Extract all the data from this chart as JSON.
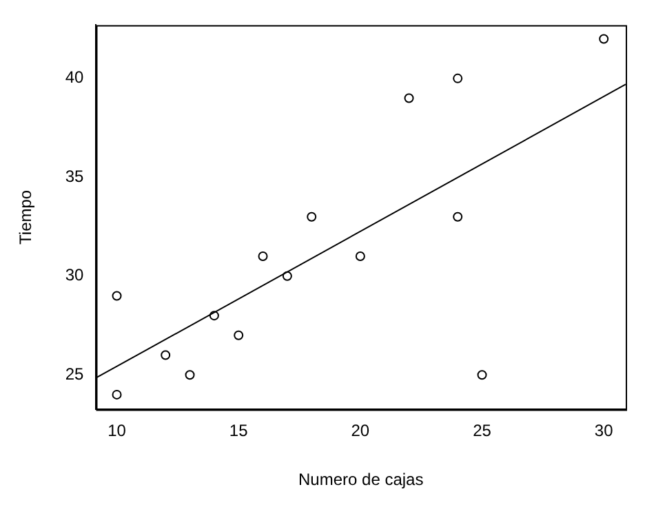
{
  "chart_data": {
    "type": "scatter",
    "xlabel": "Numero de cajas",
    "ylabel": "Tiempo",
    "xlim": [
      9.15,
      30.9
    ],
    "ylim": [
      23.25,
      42.7
    ],
    "xticks": [
      10,
      15,
      20,
      25,
      30
    ],
    "yticks": [
      25,
      30,
      35,
      40
    ],
    "grid": false,
    "legend": false,
    "series": [
      {
        "color": "#000000",
        "marker": "circle",
        "x": [
          10,
          10,
          12,
          13,
          14,
          15,
          16,
          17,
          18,
          20,
          22,
          24,
          24,
          25,
          30
        ],
        "values": [
          29,
          24,
          26,
          25,
          28,
          27,
          31,
          30,
          33,
          31,
          39,
          40,
          33,
          25,
          42
        ]
      },
      {
        "type": "line",
        "marker": "none",
        "color": "#000000",
        "x": [
          9.15,
          30.9
        ],
        "values": [
          24.85,
          39.7
        ]
      }
    ]
  }
}
